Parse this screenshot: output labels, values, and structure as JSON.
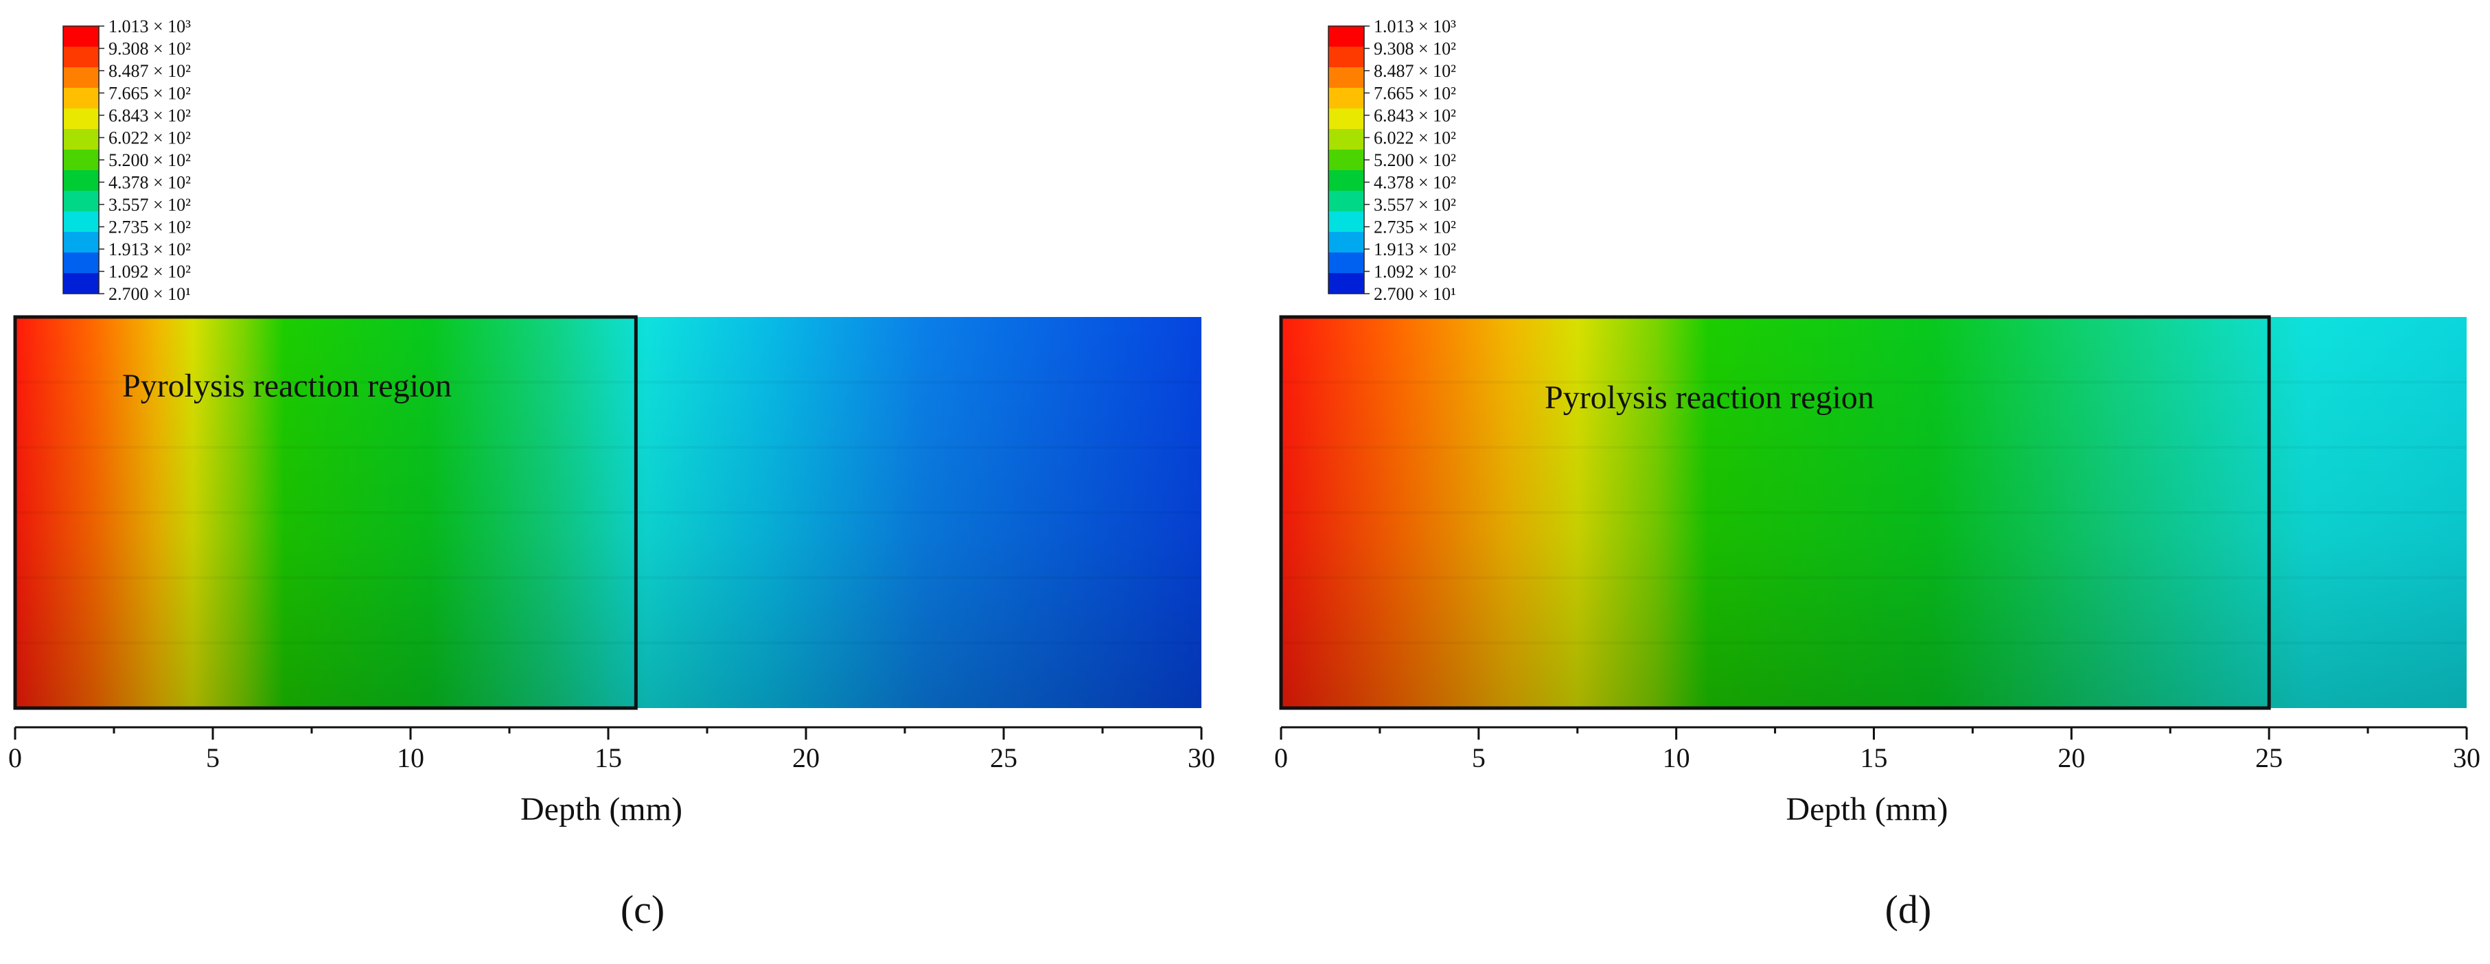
{
  "panels": [
    {
      "label": "(c)",
      "chart_data": {
        "type": "heatmap",
        "title": "",
        "xlabel": "Depth (mm)",
        "ylabel": "",
        "xlim": [
          0,
          30
        ],
        "x_ticks": [
          0,
          5,
          10,
          15,
          20,
          25,
          30
        ],
        "x_tick_labels": [
          "0",
          "5",
          "10",
          "15",
          "20",
          "25",
          "30"
        ],
        "annotation": "Pyrolysis reaction region",
        "region_end_depth": 15.7,
        "grid": false,
        "legend": "top-left",
        "color_stops": [
          {
            "depth": 0,
            "color": "#ff1a0a"
          },
          {
            "depth": 2.0,
            "color": "#ff6a00"
          },
          {
            "depth": 3.6,
            "color": "#f2b800"
          },
          {
            "depth": 4.5,
            "color": "#d8e000"
          },
          {
            "depth": 5.8,
            "color": "#7ad400"
          },
          {
            "depth": 6.8,
            "color": "#1ccd00"
          },
          {
            "depth": 10.5,
            "color": "#08c81e"
          },
          {
            "depth": 13.5,
            "color": "#10d27e"
          },
          {
            "depth": 16.0,
            "color": "#0ee1de"
          },
          {
            "depth": 19.0,
            "color": "#08bce6"
          },
          {
            "depth": 23.0,
            "color": "#0a7fe8"
          },
          {
            "depth": 30,
            "color": "#0544e0"
          }
        ]
      }
    },
    {
      "label": "(d)",
      "chart_data": {
        "type": "heatmap",
        "title": "",
        "xlabel": "Depth (mm)",
        "ylabel": "",
        "xlim": [
          0,
          30
        ],
        "x_ticks": [
          0,
          5,
          10,
          15,
          20,
          25,
          30
        ],
        "x_tick_labels": [
          "0",
          "5",
          "10",
          "15",
          "20",
          "25",
          "30"
        ],
        "annotation": "Pyrolysis reaction region",
        "region_end_depth": 25,
        "grid": false,
        "legend": "top-left",
        "color_stops": [
          {
            "depth": 0,
            "color": "#ff1a0a"
          },
          {
            "depth": 3.0,
            "color": "#ff6a00"
          },
          {
            "depth": 5.8,
            "color": "#f2b800"
          },
          {
            "depth": 7.5,
            "color": "#d8e000"
          },
          {
            "depth": 9.5,
            "color": "#7ad400"
          },
          {
            "depth": 10.8,
            "color": "#1ccd00"
          },
          {
            "depth": 16.5,
            "color": "#08c81e"
          },
          {
            "depth": 21.0,
            "color": "#10d27e"
          },
          {
            "depth": 26.0,
            "color": "#0ee1de"
          },
          {
            "depth": 30,
            "color": "#0bd6dc"
          }
        ]
      }
    }
  ],
  "colorbar": {
    "labels": [
      "1.013 × 10³",
      "9.308 × 10²",
      "8.487 × 10²",
      "7.665 × 10²",
      "6.843 × 10²",
      "6.022 × 10²",
      "5.200 × 10²",
      "4.378 × 10²",
      "3.557 × 10²",
      "2.735 × 10²",
      "1.913 × 10²",
      "1.092 × 10²",
      "2.700 × 10¹"
    ],
    "colors": [
      "#ff0000",
      "#ff3a00",
      "#ff8000",
      "#ffbf00",
      "#e8e800",
      "#a8e000",
      "#4cd400",
      "#00cc33",
      "#00d888",
      "#00e0e0",
      "#00a8f0",
      "#0060f0",
      "#0020d8"
    ]
  }
}
